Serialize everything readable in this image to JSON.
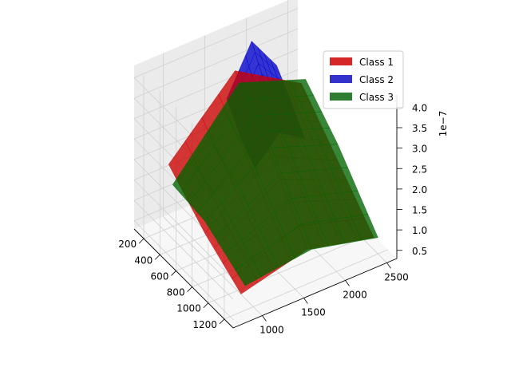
{
  "chart_data": {
    "type": "surface3d",
    "title": "",
    "xlabel": "",
    "ylabel": "",
    "zlabel": "",
    "x_ticks": [
      200,
      400,
      600,
      800,
      1000,
      1200
    ],
    "y_ticks": [
      1000,
      1500,
      2000,
      2500
    ],
    "z_ticks": [
      0.5,
      1.0,
      1.5,
      2.0,
      2.5,
      3.0,
      3.5,
      4.0
    ],
    "z_tick_labels": [
      "0.5",
      "1.0",
      "1.5",
      "2.0",
      "2.5",
      "3.0",
      "3.5",
      "4.0"
    ],
    "z_offset_label": "1e−7",
    "xlim": [
      80,
      1310
    ],
    "ylim": [
      650,
      2620
    ],
    "zlim": [
      0.3,
      4.3
    ],
    "legend_position": "top-right",
    "grid": true,
    "series": [
      {
        "name": "Class 1",
        "color": "#cc0000",
        "legend_color": "#d62728",
        "x": [
          250,
          700,
          1150
        ],
        "y": [
          900,
          1700,
          2500
        ],
        "z": [
          [
            2.0,
            3.6,
            2.6
          ],
          [
            1.2,
            2.4,
            1.6
          ],
          [
            0.6,
            1.0,
            0.6
          ]
        ]
      },
      {
        "name": "Class 2",
        "color": "#0000cc",
        "legend_color": "#3333cc",
        "x": [
          250,
          420,
          600
        ],
        "y": [
          1600,
          1900,
          2200
        ],
        "z": [
          [
            3.0,
            4.15,
            3.3
          ],
          [
            2.4,
            3.4,
            2.8
          ],
          [
            2.0,
            2.6,
            2.2
          ]
        ]
      },
      {
        "name": "Class 3",
        "color": "#006400",
        "legend_color": "#2e7d32",
        "x": [
          300,
          700,
          1200
        ],
        "y": [
          900,
          1700,
          2500
        ],
        "z": [
          [
            1.6,
            3.4,
            2.8
          ],
          [
            1.5,
            2.6,
            2.0
          ],
          [
            0.9,
            1.1,
            0.7
          ]
        ]
      }
    ]
  }
}
